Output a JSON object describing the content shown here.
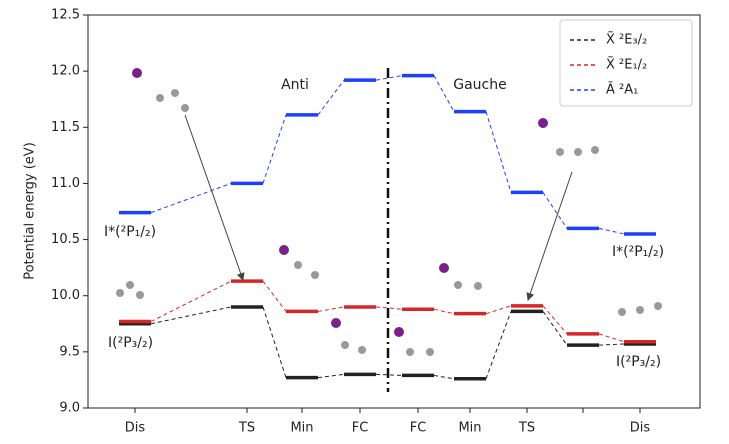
{
  "chart_data": {
    "type": "level",
    "ylabel": "Potential energy (eV)",
    "categories": [
      "Dis",
      "TS",
      "Min",
      "FC",
      "FC",
      "Min",
      "TS",
      null,
      "Dis"
    ],
    "ylim": [
      9.0,
      12.5
    ],
    "yticks": [
      {
        "value": 9.0,
        "label": "9.0"
      },
      9.5,
      {
        "value": 10.0,
        "label": "10.0"
      },
      10.5,
      {
        "value": 11.0,
        "label": "11.0"
      },
      11.5,
      {
        "value": 12.0,
        "label": "12.0"
      },
      12.5
    ],
    "legend": "upper right",
    "series": [
      {
        "name": "X̃ ²E₃/₂",
        "color": "#222222",
        "values": [
          9.75,
          9.9,
          9.27,
          9.3,
          9.29,
          9.26,
          9.86,
          9.56,
          9.57
        ]
      },
      {
        "name": "X̃ ²E₁/₂",
        "color": "#d62728",
        "values": [
          9.77,
          10.13,
          9.86,
          9.9,
          9.88,
          9.84,
          9.91,
          9.66,
          9.59
        ]
      },
      {
        "name": "Ã ²A₁",
        "color": "#1f3fff",
        "values": [
          10.74,
          11.0,
          11.61,
          11.92,
          11.96,
          11.64,
          10.92,
          10.6,
          10.55
        ]
      }
    ],
    "annotations": [
      "Anti",
      "Gauche",
      "I*(²P₁/₂)",
      "I(²P₃/₂)",
      "I*(²P₁/₂)",
      "I(²P₃/₂)"
    ]
  }
}
